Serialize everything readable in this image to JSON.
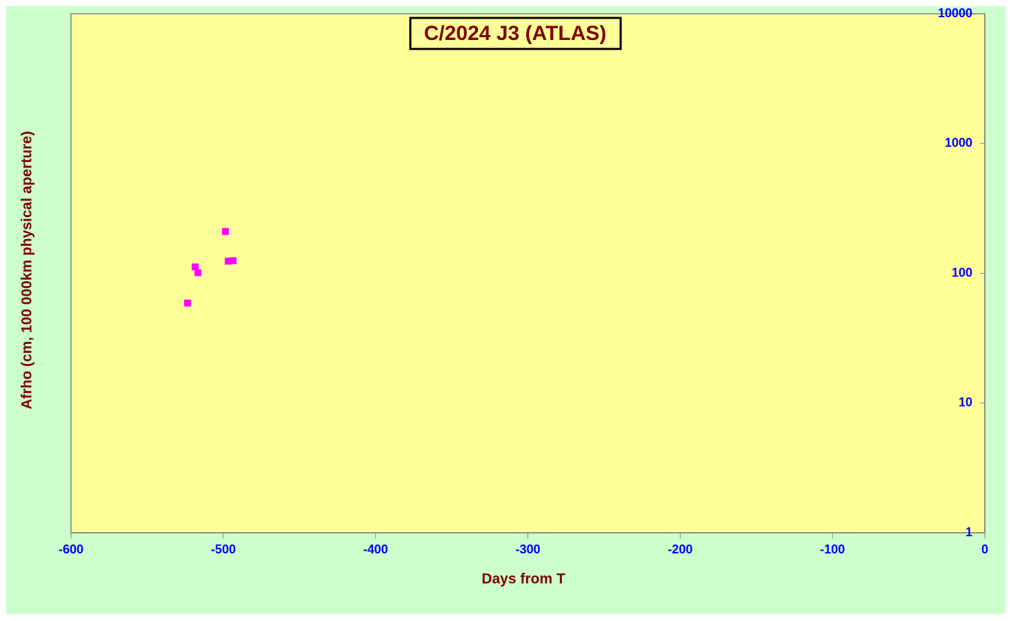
{
  "chart_data": {
    "type": "scatter",
    "title": "C/2024 J3 (ATLAS)",
    "x_label": "Days from  T",
    "y_label": "Afrho (cm, 100 000km physical aperture)",
    "x": [
      -523.5,
      -518.5,
      -516.7,
      -498.6,
      -496.8,
      -493.6
    ],
    "values": [
      59,
      112,
      101,
      210,
      124,
      125
    ],
    "color": "#ff00ff",
    "xlim": [
      -600,
      0
    ],
    "xticks": [
      -600,
      -500,
      -400,
      -300,
      -200,
      -100,
      0
    ],
    "ylim": [
      1,
      10000
    ],
    "yticks": [
      1,
      10,
      100,
      1000,
      10000
    ],
    "log_y": true,
    "y_axis_side": "right",
    "grid": false
  }
}
